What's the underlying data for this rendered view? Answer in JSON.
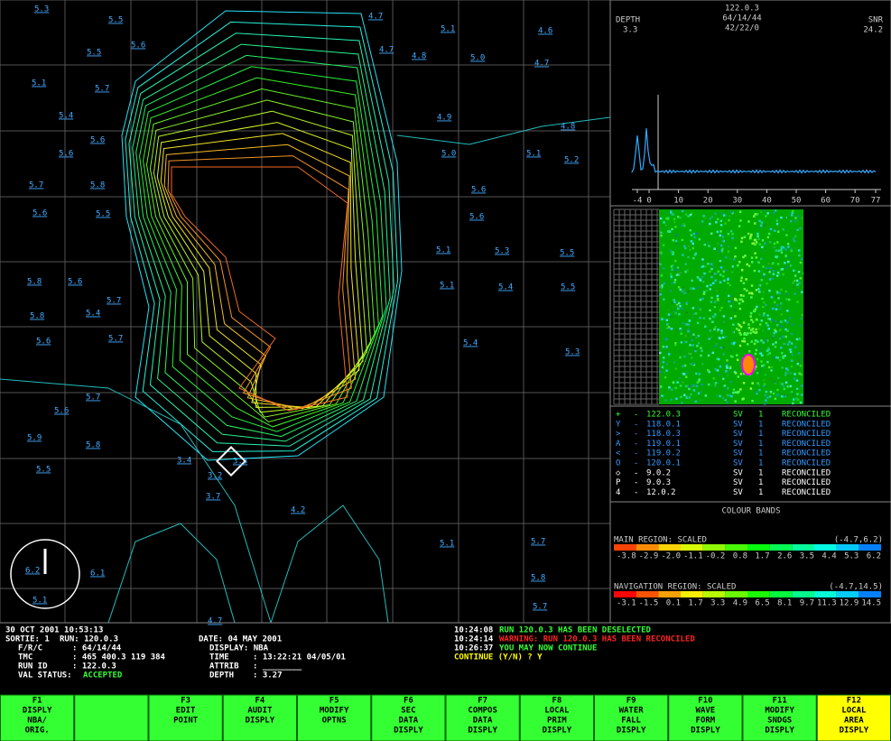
{
  "waveform": {
    "depth_label": "DEPTH",
    "depth": "3.3",
    "run": "122.0.3",
    "frc": "64/14/44",
    "pos": "42/22/0",
    "snr_label": "SNR",
    "snr": "24.2",
    "axis": [
      "-4",
      "0",
      "10",
      "20",
      "30",
      "40",
      "50",
      "60",
      "70",
      "77"
    ]
  },
  "runs": [
    {
      "symbol": "+",
      "dash": "-",
      "run": "122.0.3",
      "type": "SV",
      "n": "1",
      "status": "RECONCILED",
      "color": "#33ff33"
    },
    {
      "symbol": "Y",
      "dash": "-",
      "run": "118.0.1",
      "type": "SV",
      "n": "1",
      "status": "RECONCILED",
      "color": "#3399ff"
    },
    {
      "symbol": ">",
      "dash": "-",
      "run": "118.0.3",
      "type": "SV",
      "n": "1",
      "status": "RECONCILED",
      "color": "#3399ff"
    },
    {
      "symbol": "A",
      "dash": "-",
      "run": "119.0.1",
      "type": "SV",
      "n": "1",
      "status": "RECONCILED",
      "color": "#3399ff"
    },
    {
      "symbol": "<",
      "dash": "-",
      "run": "119.0.2",
      "type": "SV",
      "n": "1",
      "status": "RECONCILED",
      "color": "#3399ff"
    },
    {
      "symbol": "O",
      "dash": "-",
      "run": "120.0.1",
      "type": "SV",
      "n": "1",
      "status": "RECONCILED",
      "color": "#3399ff"
    },
    {
      "symbol": "◇",
      "dash": "-",
      "run": "9.0.2",
      "type": "SV",
      "n": "1",
      "status": "RECONCILED",
      "color": "#ffffff"
    },
    {
      "symbol": "P",
      "dash": "-",
      "run": "9.0.3",
      "type": "SV",
      "n": "1",
      "status": "RECONCILED",
      "color": "#ffffff"
    },
    {
      "symbol": "4",
      "dash": "-",
      "run": "12.0.2",
      "type": "SV",
      "n": "1",
      "status": "RECONCILED",
      "color": "#ffffff"
    }
  ],
  "colour_bands": {
    "title": "COLOUR BANDS",
    "main": {
      "label": "MAIN REGION: SCALED",
      "range": "(-4.7,6.2)",
      "ticks": [
        "-3.8",
        "-2.9",
        "-2.0",
        "-1.1",
        "-0.2",
        "0.8",
        "1.7",
        "2.6",
        "3.5",
        "4.4",
        "5.3",
        "6.2"
      ]
    },
    "navigation": {
      "label": "NAVIGATION REGION: SCALED",
      "range": "(-4.7,14.5)",
      "ticks": [
        "-3.1",
        "-1.5",
        "0.1",
        "1.7",
        "3.3",
        "4.9",
        "6.5",
        "8.1",
        "9.7",
        "11.3",
        "12.9",
        "14.5"
      ]
    }
  },
  "map": {
    "soundings": [
      "5.3",
      "5.5",
      "5.5",
      "5.6",
      "4.7",
      "5.1",
      "4.6",
      "4.7",
      "4.8",
      "5.0",
      "4.7",
      "5.1",
      "5.7",
      "5.4",
      "5.6",
      "5.6",
      "4.9",
      "4.8",
      "5.0",
      "5.1",
      "5.2",
      "5.7",
      "5.8",
      "5.6",
      "5.6",
      "5.5",
      "5.6",
      "5.1",
      "5.3",
      "5.5",
      "5.8",
      "5.6",
      "5.1",
      "5.4",
      "5.5",
      "5.7",
      "5.8",
      "5.4",
      "5.7",
      "5.6",
      "5.4",
      "5.3",
      "5.7",
      "5.6",
      "5.9",
      "5.8",
      "5.5",
      "3.4",
      "3.3",
      "3.2",
      "3.7",
      "4.2",
      "5.7",
      "5.1",
      "6.2",
      "6.1",
      "5.1",
      "4.7",
      "5.8",
      "5.7"
    ]
  },
  "status": {
    "timestamp": "30 OCT 2001 10:53:13",
    "sortie": "SORTIE: 1",
    "run": "RUN: 120.0.3",
    "frc_label": "F/R/C",
    "frc": ": 64/14/44",
    "tmc_label": "TMC",
    "tmc": ": 465 400.3 119 384",
    "runid_label": "RUN ID",
    "runid": ": 122.0.3",
    "val_label": "VAL STATUS:",
    "val": "ACCEPTED",
    "date": "DATE: 04 MAY 2001",
    "display": "DISPLAY: NBA",
    "time_label": "TIME",
    "time": ": 13:22:21 04/05/01",
    "attrib_label": "ATTRIB",
    "attrib": ": ________",
    "depth_label": "DEPTH",
    "depth": ": 3.27"
  },
  "messages": [
    {
      "time": "10:24:08",
      "text": "RUN 120.0.3 HAS BEEN DESELECTED",
      "color": "#33ff33"
    },
    {
      "time": "10:24:14",
      "text": "WARNING: RUN 120.0.3 HAS BEEN RECONCILED",
      "color": "#ff2222"
    },
    {
      "time": "10:26:37",
      "text": "YOU MAY NOW CONTINUE",
      "color": "#33ff33"
    }
  ],
  "prompt": "CONTINUE (Y/N) ? Y",
  "key_colors": {
    "normal": "#33ff33",
    "active": "#ffff00"
  },
  "keys": [
    {
      "key": "F1",
      "lines": [
        "DISPLY",
        "NBA/",
        "ORIG."
      ]
    },
    {
      "key": "",
      "lines": []
    },
    {
      "key": "F3",
      "lines": [
        "EDIT",
        "POINT"
      ]
    },
    {
      "key": "F4",
      "lines": [
        "AUDIT",
        "DISPLY"
      ]
    },
    {
      "key": "F5",
      "lines": [
        "MODIFY",
        "OPTNS"
      ]
    },
    {
      "key": "F6",
      "lines": [
        "SEC",
        "DATA",
        "DISPLY"
      ]
    },
    {
      "key": "F7",
      "lines": [
        "COMPOS",
        "DATA",
        "DISPLY"
      ]
    },
    {
      "key": "F8",
      "lines": [
        "LOCAL",
        "PRIM",
        "DISPLY"
      ]
    },
    {
      "key": "F9",
      "lines": [
        "WATER",
        "FALL",
        "DISPLY"
      ]
    },
    {
      "key": "F10",
      "lines": [
        "WAVE",
        "FORM",
        "DISPLY"
      ]
    },
    {
      "key": "F11",
      "lines": [
        "MODIFY",
        "SNDGS",
        "DISPLY"
      ]
    },
    {
      "key": "F12",
      "lines": [
        "LOCAL",
        "AREA",
        "DISPLY"
      ],
      "active": true
    }
  ]
}
